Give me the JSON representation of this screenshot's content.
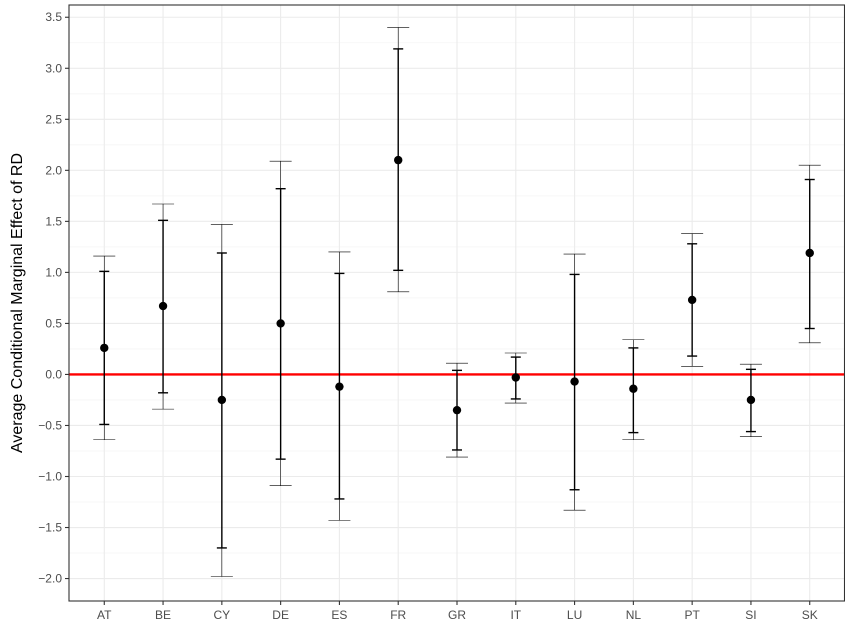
{
  "chart_data": {
    "type": "scatter",
    "title": "",
    "xlabel": "",
    "ylabel": "Average Conditional Marginal Effect of RD",
    "categories": [
      "AT",
      "BE",
      "CY",
      "DE",
      "ES",
      "FR",
      "GR",
      "IT",
      "LU",
      "NL",
      "PT",
      "SI",
      "SK"
    ],
    "estimates": [
      0.26,
      0.67,
      -0.25,
      0.5,
      -0.12,
      2.1,
      -0.35,
      -0.03,
      -0.07,
      -0.14,
      0.73,
      -0.25,
      1.19
    ],
    "inner_ci": [
      [
        -0.49,
        1.01
      ],
      [
        -0.18,
        1.51
      ],
      [
        -1.7,
        1.19
      ],
      [
        -0.83,
        1.82
      ],
      [
        -1.22,
        0.99
      ],
      [
        1.02,
        3.19
      ],
      [
        -0.74,
        0.04
      ],
      [
        -0.24,
        0.17
      ],
      [
        -1.13,
        0.98
      ],
      [
        -0.57,
        0.26
      ],
      [
        0.18,
        1.28
      ],
      [
        -0.56,
        0.05
      ],
      [
        0.45,
        1.91
      ]
    ],
    "outer_ci": [
      [
        -0.64,
        1.16
      ],
      [
        -0.34,
        1.67
      ],
      [
        -1.98,
        1.47
      ],
      [
        -1.09,
        2.09
      ],
      [
        -1.43,
        1.2
      ],
      [
        0.81,
        3.4
      ],
      [
        -0.81,
        0.11
      ],
      [
        -0.28,
        0.21
      ],
      [
        -1.33,
        1.18
      ],
      [
        -0.64,
        0.34
      ],
      [
        0.08,
        1.38
      ],
      [
        -0.61,
        0.1
      ],
      [
        0.31,
        2.05
      ]
    ],
    "yticks": [
      -2.0,
      -1.5,
      -1.0,
      -0.5,
      0.0,
      0.5,
      1.0,
      1.5,
      2.0,
      2.5,
      3.0,
      3.5
    ],
    "ytick_labels": [
      "−2.0",
      "−1.5",
      "−1.0",
      "−0.5",
      "0.0",
      "0.5",
      "1.0",
      "1.5",
      "2.0",
      "2.5",
      "3.0",
      "3.5"
    ],
    "ylim": [
      -2.22,
      3.62
    ],
    "reference_line": {
      "y": 0,
      "color": "#ff0000"
    },
    "grid": true,
    "legend": "none",
    "colors": {
      "points": "#000000",
      "grid_major": "#ebebeb",
      "grid_minor": "#f5f5f5",
      "panel_border": "#333333"
    }
  }
}
